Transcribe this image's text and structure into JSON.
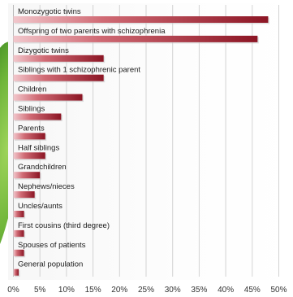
{
  "chart_data": {
    "type": "bar",
    "orientation": "horizontal",
    "title": "",
    "xlabel": "",
    "ylabel": "",
    "xlim": [
      0,
      50
    ],
    "grid": true,
    "categories": [
      "Monozygotic twins",
      "Offspring of two parents with schizophrenia",
      "Dizygotic twins",
      "Siblings with 1 schizophrenic parent",
      "Children",
      "Siblings",
      "Parents",
      "Half siblings",
      "Grandchildren",
      "Nephews/nieces",
      "Uncles/aunts",
      "First cousins (third degree)",
      "Spouses of patients",
      "General population"
    ],
    "values": [
      48,
      46,
      17,
      17,
      13,
      9,
      6,
      6,
      5,
      4,
      2,
      2,
      2,
      1
    ],
    "tick_values": [
      0,
      5,
      10,
      15,
      20,
      25,
      30,
      35,
      40,
      45,
      50
    ],
    "tick_labels": [
      "0%",
      "5%",
      "10%",
      "15%",
      "20%",
      "25%",
      "30%",
      "35%",
      "40%",
      "45%",
      "50%"
    ],
    "bar_color": "#a8232f"
  }
}
